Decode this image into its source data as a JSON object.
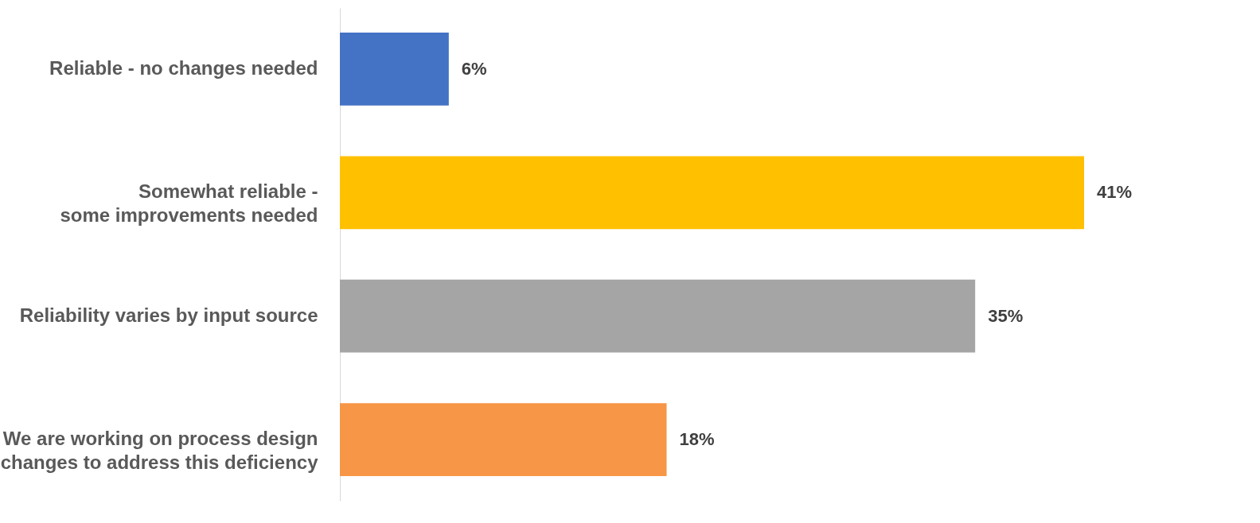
{
  "chart_data": {
    "type": "bar",
    "orientation": "horizontal",
    "categories": [
      "Reliable - no changes needed",
      "Somewhat reliable -\nsome improvements needed",
      "Reliability varies by input source",
      "We are working on process design\nchanges to address this deficiency"
    ],
    "values": [
      6,
      41,
      35,
      18
    ],
    "colors": [
      "#4472c4",
      "#ffc000",
      "#a5a5a5",
      "#f79646"
    ],
    "value_labels": [
      "6%",
      "41%",
      "35%",
      "18%"
    ]
  }
}
